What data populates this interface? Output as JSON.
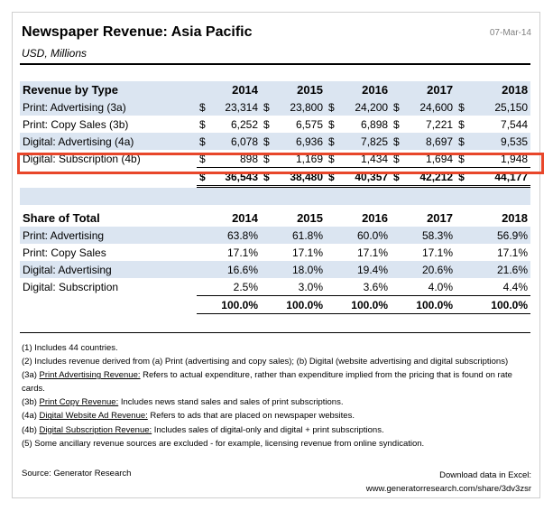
{
  "title": "Newspaper Revenue: Asia Pacific",
  "date": "07-Mar-14",
  "subtitle": "USD, Millions",
  "revenue": {
    "header": "Revenue by Type",
    "years": [
      "2014",
      "2015",
      "2016",
      "2017",
      "2018"
    ],
    "currency": "$",
    "rows": [
      {
        "label": "Print: Advertising (3a)",
        "values": [
          "23,314",
          "23,800",
          "24,200",
          "24,600",
          "25,150"
        ]
      },
      {
        "label": "Print: Copy Sales (3b)",
        "values": [
          "6,252",
          "6,575",
          "6,898",
          "7,221",
          "7,544"
        ]
      },
      {
        "label": "Digital: Advertising (4a)",
        "values": [
          "6,078",
          "6,936",
          "7,825",
          "8,697",
          "9,535"
        ]
      },
      {
        "label": "Digital: Subscription (4b)",
        "values": [
          "898",
          "1,169",
          "1,434",
          "1,694",
          "1,948"
        ]
      }
    ],
    "totals": [
      "36,543",
      "38,480",
      "40,357",
      "42,212",
      "44,177"
    ]
  },
  "share": {
    "header": "Share of Total",
    "years": [
      "2014",
      "2015",
      "2016",
      "2017",
      "2018"
    ],
    "rows": [
      {
        "label": "Print: Advertising",
        "values": [
          "63.8%",
          "61.8%",
          "60.0%",
          "58.3%",
          "56.9%"
        ]
      },
      {
        "label": "Print: Copy Sales",
        "values": [
          "17.1%",
          "17.1%",
          "17.1%",
          "17.1%",
          "17.1%"
        ]
      },
      {
        "label": "Digital: Advertising",
        "values": [
          "16.6%",
          "18.0%",
          "19.4%",
          "20.6%",
          "21.6%"
        ]
      },
      {
        "label": "Digital: Subscription",
        "values": [
          "2.5%",
          "3.0%",
          "3.6%",
          "4.0%",
          "4.4%"
        ]
      }
    ],
    "totals": [
      "100.0%",
      "100.0%",
      "100.0%",
      "100.0%",
      "100.0%"
    ]
  },
  "notes": [
    {
      "prefix": "(1) ",
      "term": "",
      "text": "Includes 44 countries."
    },
    {
      "prefix": "(2) ",
      "term": "",
      "text": "Includes revenue derived from (a) Print (advertising and copy sales); (b) Digital (website advertising and digital subscriptions)"
    },
    {
      "prefix": "(3a) ",
      "term": "Print Advertising Revenue:",
      "text": " Refers to actual expenditure, rather than expenditure implied from the pricing that is found on rate cards."
    },
    {
      "prefix": "(3b) ",
      "term": "Print Copy Revenue:",
      "text": " Includes news stand sales and sales of print subscriptions."
    },
    {
      "prefix": "(4a) ",
      "term": "Digital Website Ad Revenue:",
      "text": "  Refers to ads that are placed on newspaper websites."
    },
    {
      "prefix": "(4b) ",
      "term": "Digital Subscription Revenue:",
      "text": " Includes sales of digital-only and digital + print subscriptions."
    },
    {
      "prefix": "(5) ",
      "term": "",
      "text": "Some ancillary revenue sources are excluded - for example, licensing revenue from online syndication."
    }
  ],
  "source": "Source: Generator Research",
  "download": {
    "label": "Download data in Excel:",
    "url": "www.generatorresearch.com/share/3dv3zsr"
  },
  "colors": {
    "band": "#dbe5f1",
    "highlight": "#e8462a"
  }
}
